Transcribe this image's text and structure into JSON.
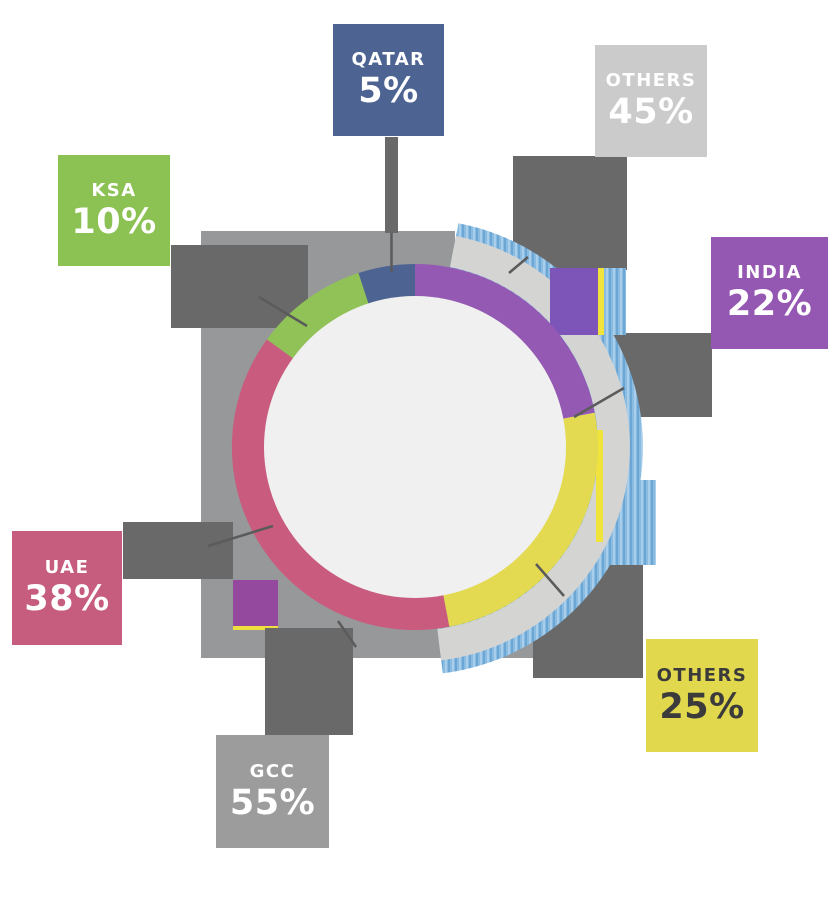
{
  "page": {
    "background": "#FFFFFF"
  },
  "chart_data": {
    "type": "pie",
    "subtype": "concentric-donut",
    "legend_position": "floating-cards-around-chart",
    "rings": [
      {
        "name": "region-share-outer-ring",
        "segments": [
          {
            "label": "GCC",
            "value": 55,
            "color": "#97989A"
          },
          {
            "label": "OTHERS",
            "value": 45,
            "color": "#D4D4D3"
          }
        ]
      },
      {
        "name": "nationality-share-inner-ring",
        "segments": [
          {
            "label": "QATAR",
            "value": 5,
            "color": "#4D6493"
          },
          {
            "label": "INDIA",
            "value": 22,
            "color": "#9459B2"
          },
          {
            "label": "OTHERS",
            "value": 25,
            "color": "#E3DA51"
          },
          {
            "label": "UAE",
            "value": 38,
            "color": "#C95C7E"
          },
          {
            "label": "KSA",
            "value": 10,
            "color": "#90C258"
          }
        ]
      }
    ]
  },
  "labels": {
    "qatar": {
      "name": "QATAR",
      "value": "5%",
      "bg": "#4D6493",
      "fg": "#FFFFFF"
    },
    "others_intl": {
      "name": "OTHERS",
      "value": "45%",
      "bg": "#CBCBCB",
      "fg": "#FFFFFF"
    },
    "ksa": {
      "name": "KSA",
      "value": "10%",
      "bg": "#8CC153",
      "fg": "#FFFFFF"
    },
    "india": {
      "name": "INDIA",
      "value": "22%",
      "bg": "#9558B2",
      "fg": "#FFFFFF"
    },
    "uae": {
      "name": "UAE",
      "value": "38%",
      "bg": "#C75D7E",
      "fg": "#FFFFFF"
    },
    "others_gcc": {
      "name": "OTHERS",
      "value": "25%",
      "bg": "#E1D84E",
      "fg": "#3B3B3B"
    },
    "gcc": {
      "name": "GCC",
      "value": "55%",
      "bg": "#9C9C9D",
      "fg": "#FFFFFF"
    }
  }
}
